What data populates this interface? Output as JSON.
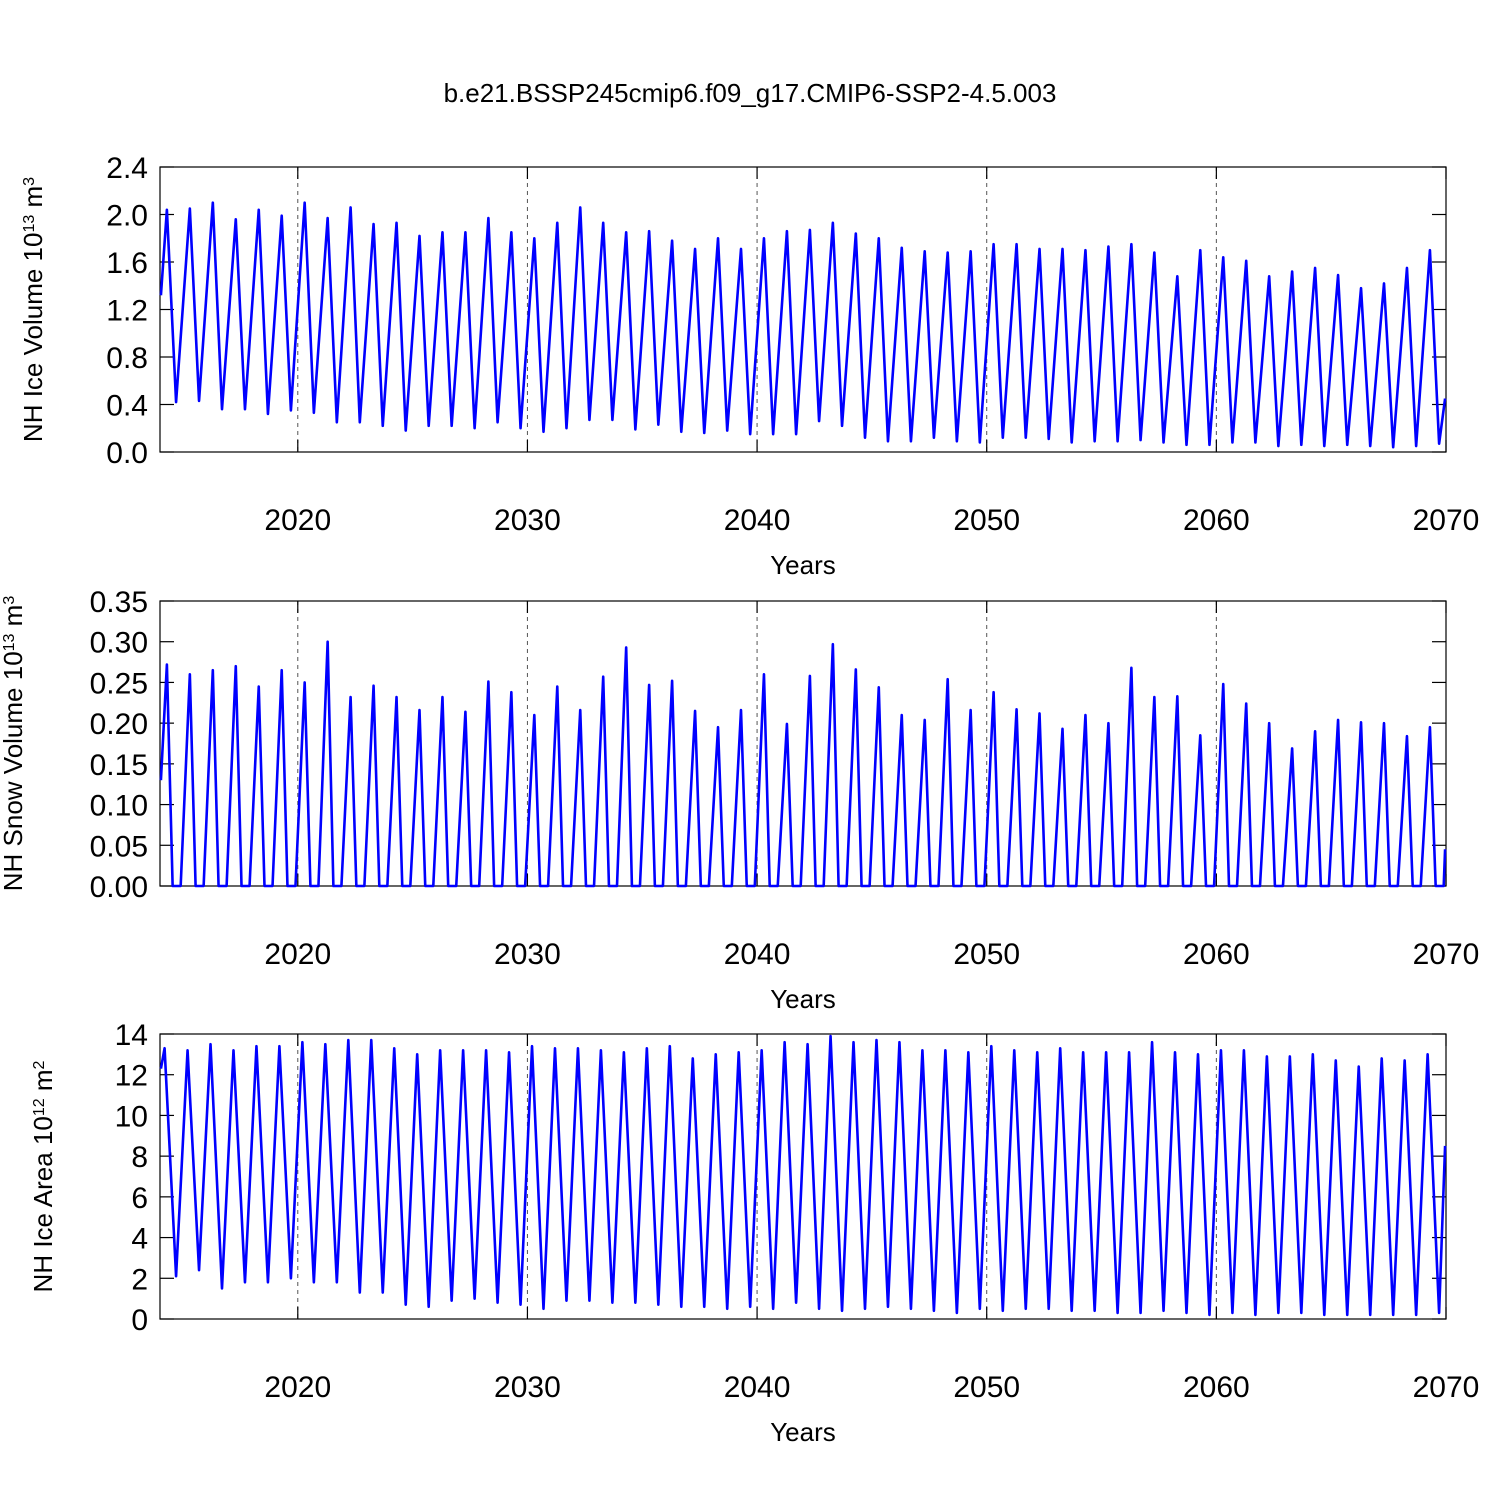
{
  "title": "b.e21.BSSP245cmip6.f09_g17.CMIP6-SSP2-4.5.003",
  "chart_data": [
    {
      "type": "line",
      "ylabel": [
        "NH Ice Volume 10",
        "13",
        " m",
        "3"
      ],
      "xlabel": "Years",
      "color": "#0000ff",
      "grid": true,
      "xlim": [
        2014,
        2070
      ],
      "xticks": [
        2020,
        2030,
        2040,
        2050,
        2060,
        2070
      ],
      "ylim": [
        0,
        2.4
      ],
      "yticks": [
        {
          "value": 0,
          "label": "0.0"
        },
        0.4,
        0.8,
        1.2,
        1.6,
        {
          "value": 2,
          "label": "2.0"
        },
        2.4
      ],
      "x": [
        2014.04,
        2014.3,
        2014.7,
        2015.3,
        2015.7,
        2016.3,
        2016.7,
        2017.3,
        2017.7,
        2018.3,
        2018.7,
        2019.3,
        2019.7,
        2020.3,
        2020.7,
        2021.3,
        2021.7,
        2022.3,
        2022.7,
        2023.3,
        2023.7,
        2024.3,
        2024.7,
        2025.3,
        2025.7,
        2026.3,
        2026.7,
        2027.3,
        2027.7,
        2028.3,
        2028.7,
        2029.3,
        2029.7,
        2030.3,
        2030.7,
        2031.3,
        2031.7,
        2032.3,
        2032.7,
        2033.3,
        2033.7,
        2034.3,
        2034.7,
        2035.3,
        2035.7,
        2036.3,
        2036.7,
        2037.3,
        2037.7,
        2038.3,
        2038.7,
        2039.3,
        2039.7,
        2040.3,
        2040.7,
        2041.3,
        2041.7,
        2042.3,
        2042.7,
        2043.3,
        2043.7,
        2044.3,
        2044.7,
        2045.3,
        2045.7,
        2046.3,
        2046.7,
        2047.3,
        2047.7,
        2048.3,
        2048.7,
        2049.3,
        2049.7,
        2050.3,
        2050.7,
        2051.3,
        2051.7,
        2052.3,
        2052.7,
        2053.3,
        2053.7,
        2054.3,
        2054.7,
        2055.3,
        2055.7,
        2056.3,
        2056.7,
        2057.3,
        2057.7,
        2058.3,
        2058.7,
        2059.3,
        2059.7,
        2060.3,
        2060.7,
        2061.3,
        2061.7,
        2062.3,
        2062.7,
        2063.3,
        2063.7,
        2064.3,
        2064.7,
        2065.3,
        2065.7,
        2066.3,
        2066.7,
        2067.3,
        2067.7,
        2068.3,
        2068.7,
        2069.3,
        2069.7,
        2069.96
      ],
      "values": [
        1.32,
        2.04,
        0.42,
        2.05,
        0.43,
        2.1,
        0.36,
        1.96,
        0.36,
        2.04,
        0.32,
        1.99,
        0.35,
        2.1,
        0.33,
        1.97,
        0.25,
        2.06,
        0.25,
        1.92,
        0.22,
        1.93,
        0.18,
        1.82,
        0.22,
        1.85,
        0.22,
        1.85,
        0.2,
        1.97,
        0.25,
        1.85,
        0.2,
        1.8,
        0.17,
        1.93,
        0.2,
        2.06,
        0.27,
        1.93,
        0.27,
        1.85,
        0.19,
        1.86,
        0.23,
        1.78,
        0.17,
        1.71,
        0.16,
        1.8,
        0.18,
        1.71,
        0.15,
        1.8,
        0.15,
        1.86,
        0.15,
        1.87,
        0.26,
        1.93,
        0.22,
        1.84,
        0.12,
        1.8,
        0.09,
        1.72,
        0.09,
        1.69,
        0.12,
        1.68,
        0.09,
        1.69,
        0.08,
        1.75,
        0.12,
        1.75,
        0.12,
        1.71,
        0.11,
        1.71,
        0.08,
        1.7,
        0.09,
        1.73,
        0.09,
        1.75,
        0.1,
        1.68,
        0.08,
        1.48,
        0.06,
        1.7,
        0.06,
        1.64,
        0.08,
        1.61,
        0.08,
        1.48,
        0.05,
        1.52,
        0.06,
        1.55,
        0.05,
        1.49,
        0.06,
        1.38,
        0.05,
        1.42,
        0.04,
        1.55,
        0.05,
        1.7,
        0.07,
        0.45
      ]
    },
    {
      "type": "line",
      "ylabel": [
        "NH Snow Volume 10",
        "13",
        " m",
        "3"
      ],
      "xlabel": "Years",
      "color": "#0000ff",
      "grid": true,
      "xlim": [
        2014,
        2070
      ],
      "xticks": [
        2020,
        2030,
        2040,
        2050,
        2060,
        2070
      ],
      "ylim": [
        0,
        0.35
      ],
      "yticks": [
        {
          "value": 0,
          "label": "0.00"
        },
        0.05,
        {
          "value": 0.1,
          "label": "0.10"
        },
        0.15,
        {
          "value": 0.2,
          "label": "0.20"
        },
        0.25,
        {
          "value": 0.3,
          "label": "0.30"
        },
        0.35
      ],
      "x": [
        2014.04,
        2014.3,
        2014.55,
        2014.9,
        2015.3,
        2015.55,
        2015.9,
        2016.3,
        2016.55,
        2016.9,
        2017.3,
        2017.55,
        2017.9,
        2018.3,
        2018.55,
        2018.9,
        2019.3,
        2019.55,
        2019.9,
        2020.3,
        2020.55,
        2020.9,
        2021.3,
        2021.55,
        2021.9,
        2022.3,
        2022.55,
        2022.9,
        2023.3,
        2023.55,
        2023.9,
        2024.3,
        2024.55,
        2024.9,
        2025.3,
        2025.55,
        2025.9,
        2026.3,
        2026.55,
        2026.9,
        2027.3,
        2027.55,
        2027.9,
        2028.3,
        2028.55,
        2028.9,
        2029.3,
        2029.55,
        2029.9,
        2030.3,
        2030.55,
        2030.9,
        2031.3,
        2031.55,
        2031.9,
        2032.3,
        2032.55,
        2032.9,
        2033.3,
        2033.55,
        2033.9,
        2034.3,
        2034.55,
        2034.9,
        2035.3,
        2035.55,
        2035.9,
        2036.3,
        2036.55,
        2036.9,
        2037.3,
        2037.55,
        2037.9,
        2038.3,
        2038.55,
        2038.9,
        2039.3,
        2039.55,
        2039.9,
        2040.3,
        2040.55,
        2040.9,
        2041.3,
        2041.55,
        2041.9,
        2042.3,
        2042.55,
        2042.9,
        2043.3,
        2043.55,
        2043.9,
        2044.3,
        2044.55,
        2044.9,
        2045.3,
        2045.55,
        2045.9,
        2046.3,
        2046.55,
        2046.9,
        2047.3,
        2047.55,
        2047.9,
        2048.3,
        2048.55,
        2048.9,
        2049.3,
        2049.55,
        2049.9,
        2050.3,
        2050.55,
        2050.9,
        2051.3,
        2051.55,
        2051.9,
        2052.3,
        2052.55,
        2052.9,
        2053.3,
        2053.55,
        2053.9,
        2054.3,
        2054.55,
        2054.9,
        2055.3,
        2055.55,
        2055.9,
        2056.3,
        2056.55,
        2056.9,
        2057.3,
        2057.55,
        2057.9,
        2058.3,
        2058.55,
        2058.9,
        2059.3,
        2059.55,
        2059.9,
        2060.3,
        2060.55,
        2060.9,
        2061.3,
        2061.55,
        2061.9,
        2062.3,
        2062.55,
        2062.9,
        2063.3,
        2063.55,
        2063.9,
        2064.3,
        2064.55,
        2064.9,
        2065.3,
        2065.55,
        2065.9,
        2066.3,
        2066.55,
        2066.9,
        2067.3,
        2067.55,
        2067.9,
        2068.3,
        2068.55,
        2068.9,
        2069.3,
        2069.55,
        2069.9,
        2069.96
      ],
      "values": [
        0.13,
        0.272,
        0,
        0,
        0.26,
        0,
        0,
        0.265,
        0,
        0,
        0.27,
        0,
        0,
        0.245,
        0,
        0,
        0.265,
        0,
        0,
        0.25,
        0,
        0,
        0.3,
        0,
        0,
        0.232,
        0,
        0,
        0.246,
        0,
        0,
        0.232,
        0,
        0,
        0.216,
        0,
        0,
        0.232,
        0,
        0,
        0.214,
        0,
        0,
        0.251,
        0,
        0,
        0.238,
        0,
        0,
        0.21,
        0,
        0,
        0.245,
        0,
        0,
        0.216,
        0,
        0,
        0.257,
        0,
        0,
        0.293,
        0,
        0,
        0.247,
        0,
        0,
        0.252,
        0,
        0,
        0.215,
        0,
        0,
        0.195,
        0,
        0,
        0.216,
        0,
        0,
        0.26,
        0,
        0,
        0.199,
        0,
        0,
        0.258,
        0,
        0,
        0.297,
        0,
        0,
        0.266,
        0,
        0,
        0.244,
        0,
        0,
        0.21,
        0,
        0,
        0.204,
        0,
        0,
        0.254,
        0,
        0,
        0.216,
        0,
        0,
        0.238,
        0,
        0,
        0.217,
        0,
        0,
        0.212,
        0,
        0,
        0.193,
        0,
        0,
        0.21,
        0,
        0,
        0.2,
        0,
        0,
        0.268,
        0,
        0,
        0.232,
        0,
        0,
        0.233,
        0,
        0,
        0.185,
        0,
        0,
        0.248,
        0,
        0,
        0.224,
        0,
        0,
        0.2,
        0,
        0,
        0.169,
        0,
        0,
        0.19,
        0,
        0,
        0.204,
        0,
        0,
        0.201,
        0,
        0,
        0.2,
        0,
        0,
        0.184,
        0,
        0,
        0.195,
        0,
        0,
        0.045
      ]
    },
    {
      "type": "line",
      "ylabel": [
        "NH Ice Area 10",
        "12",
        " m",
        "2"
      ],
      "xlabel": "Years",
      "color": "#0000ff",
      "grid": true,
      "xlim": [
        2014,
        2070
      ],
      "xticks": [
        2020,
        2030,
        2040,
        2050,
        2060,
        2070
      ],
      "ylim": [
        0,
        14
      ],
      "yticks": [
        0,
        2,
        4,
        6,
        8,
        10,
        12,
        14
      ],
      "x": [
        2014.04,
        2014.2,
        2014.7,
        2015.2,
        2015.7,
        2016.2,
        2016.7,
        2017.2,
        2017.7,
        2018.2,
        2018.7,
        2019.2,
        2019.7,
        2020.2,
        2020.7,
        2021.2,
        2021.7,
        2022.2,
        2022.7,
        2023.2,
        2023.7,
        2024.2,
        2024.7,
        2025.2,
        2025.7,
        2026.2,
        2026.7,
        2027.2,
        2027.7,
        2028.2,
        2028.7,
        2029.2,
        2029.7,
        2030.2,
        2030.7,
        2031.2,
        2031.7,
        2032.2,
        2032.7,
        2033.2,
        2033.7,
        2034.2,
        2034.7,
        2035.2,
        2035.7,
        2036.2,
        2036.7,
        2037.2,
        2037.7,
        2038.2,
        2038.7,
        2039.2,
        2039.7,
        2040.2,
        2040.7,
        2041.2,
        2041.7,
        2042.2,
        2042.7,
        2043.2,
        2043.7,
        2044.2,
        2044.7,
        2045.2,
        2045.7,
        2046.2,
        2046.7,
        2047.2,
        2047.7,
        2048.2,
        2048.7,
        2049.2,
        2049.7,
        2050.2,
        2050.7,
        2051.2,
        2051.7,
        2052.2,
        2052.7,
        2053.2,
        2053.7,
        2054.2,
        2054.7,
        2055.2,
        2055.7,
        2056.2,
        2056.7,
        2057.2,
        2057.7,
        2058.2,
        2058.7,
        2059.2,
        2059.7,
        2060.2,
        2060.7,
        2061.2,
        2061.7,
        2062.2,
        2062.7,
        2063.2,
        2063.7,
        2064.2,
        2064.7,
        2065.2,
        2065.7,
        2066.2,
        2066.7,
        2067.2,
        2067.7,
        2068.2,
        2068.7,
        2069.2,
        2069.7,
        2069.96
      ],
      "values": [
        12.3,
        13.3,
        2.1,
        13.2,
        2.4,
        13.5,
        1.5,
        13.2,
        1.8,
        13.4,
        1.8,
        13.4,
        2.0,
        13.6,
        1.8,
        13.5,
        1.8,
        13.7,
        1.3,
        13.7,
        1.3,
        13.3,
        0.7,
        13.0,
        0.6,
        13.2,
        0.9,
        13.2,
        1.0,
        13.2,
        0.8,
        13.1,
        0.7,
        13.4,
        0.5,
        13.3,
        0.9,
        13.3,
        0.9,
        13.2,
        0.8,
        13.1,
        0.8,
        13.3,
        0.7,
        13.4,
        0.6,
        12.8,
        0.6,
        13.0,
        0.5,
        13.1,
        0.6,
        13.2,
        0.5,
        13.6,
        0.8,
        13.5,
        0.5,
        13.9,
        0.4,
        13.6,
        0.5,
        13.7,
        0.6,
        13.6,
        0.5,
        13.2,
        0.4,
        13.2,
        0.3,
        13.1,
        0.5,
        13.4,
        0.4,
        13.2,
        0.5,
        13.1,
        0.5,
        13.3,
        0.4,
        13.1,
        0.4,
        13.1,
        0.3,
        13.1,
        0.3,
        13.6,
        0.4,
        13.1,
        0.3,
        13.0,
        0.2,
        13.2,
        0.3,
        13.2,
        0.2,
        12.9,
        0.3,
        12.9,
        0.3,
        13.0,
        0.2,
        12.7,
        0.2,
        12.4,
        0.2,
        12.8,
        0.2,
        12.7,
        0.2,
        13.0,
        0.3,
        8.5
      ]
    }
  ]
}
